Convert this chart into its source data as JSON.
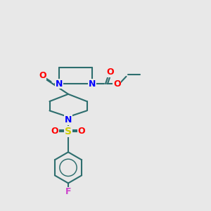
{
  "bg_color": "#e8e8e8",
  "bond_color": "#2d6e6e",
  "N_color": "#0000ff",
  "O_color": "#ff0000",
  "S_color": "#cccc00",
  "F_color": "#cc44cc",
  "line_width": 1.5,
  "fig_size": [
    3.0,
    3.0
  ],
  "dpi": 100,
  "xlim": [
    0,
    10
  ],
  "ylim": [
    0,
    10
  ]
}
